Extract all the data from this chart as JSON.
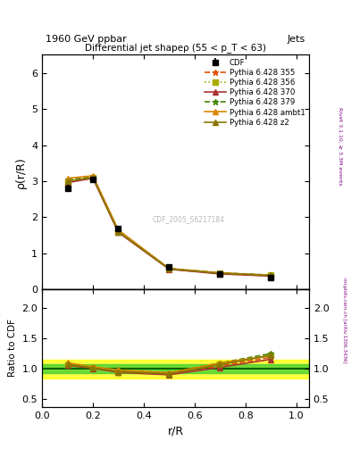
{
  "title_top": "1960 GeV ppbar",
  "title_top_right": "Jets",
  "title_main": "Differential jet shapeρ (55 < p_T < 63)",
  "ylabel_main": "ρ(r/R)",
  "ylabel_ratio": "Ratio to CDF",
  "xlabel": "r/R",
  "watermark": "CDF_2005_S6217184",
  "right_label": "Rivet 3.1.10, ≥ 3.3M events",
  "arxiv_label": "mcplots.cern.ch [arXiv:1306.3436]",
  "x": [
    0.1,
    0.2,
    0.3,
    0.5,
    0.7,
    0.9
  ],
  "cdf_y": [
    2.8,
    3.05,
    1.68,
    0.62,
    0.42,
    0.32
  ],
  "cdf_yerr": [
    0.1,
    0.08,
    0.06,
    0.04,
    0.02,
    0.02
  ],
  "p355_y": [
    2.98,
    3.1,
    1.6,
    0.57,
    0.44,
    0.38
  ],
  "p356_y": [
    2.98,
    3.1,
    1.6,
    0.57,
    0.45,
    0.39
  ],
  "p370_y": [
    2.96,
    3.08,
    1.58,
    0.56,
    0.43,
    0.37
  ],
  "p379_y": [
    3.05,
    3.12,
    1.63,
    0.58,
    0.46,
    0.4
  ],
  "pambt1_y": [
    3.08,
    3.15,
    1.65,
    0.58,
    0.46,
    0.39
  ],
  "pz2_y": [
    3.0,
    3.1,
    1.6,
    0.57,
    0.45,
    0.39
  ],
  "color_355": "#e05000",
  "color_356": "#aaaa00",
  "color_370": "#aa3333",
  "color_379": "#448800",
  "color_ambt1": "#dd8800",
  "color_z2": "#887700",
  "legend_entries": [
    "CDF",
    "Pythia 6.428 355",
    "Pythia 6.428 356",
    "Pythia 6.428 370",
    "Pythia 6.428 379",
    "Pythia 6.428 ambt1",
    "Pythia 6.428 z2"
  ],
  "ylim_main": [
    0,
    6.5
  ],
  "ylim_ratio": [
    0.38,
    2.3
  ],
  "yticks_main": [
    0,
    1,
    2,
    3,
    4,
    5,
    6
  ],
  "yticks_ratio": [
    0.5,
    1.0,
    1.5,
    2.0
  ],
  "xlim": [
    0,
    1.05
  ]
}
